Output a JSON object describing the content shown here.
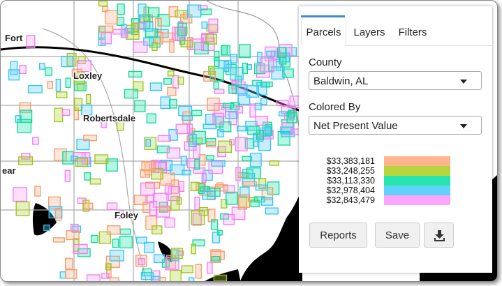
{
  "map": {
    "labels": [
      "Fort",
      "Loxley",
      "Robertsdale",
      "ear",
      "Foley"
    ]
  },
  "panel": {
    "tabs": [
      "Parcels",
      "Layers",
      "Filters"
    ],
    "county_label": "County",
    "county_value": "Baldwin, AL",
    "colored_by_label": "Colored By",
    "colored_by_value": "Net Present Value",
    "legend": [
      {
        "label": "$33,383,181",
        "color": "#fdb58c"
      },
      {
        "label": "$33,248,255",
        "color": "#b8d43c"
      },
      {
        "label": "$33,113,330",
        "color": "#27e6ad"
      },
      {
        "label": "$32,978,404",
        "color": "#5fd2fb"
      },
      {
        "label": "$32,843,479",
        "color": "#fba6f8"
      }
    ],
    "buttons": [
      "Reports",
      "Save"
    ]
  }
}
